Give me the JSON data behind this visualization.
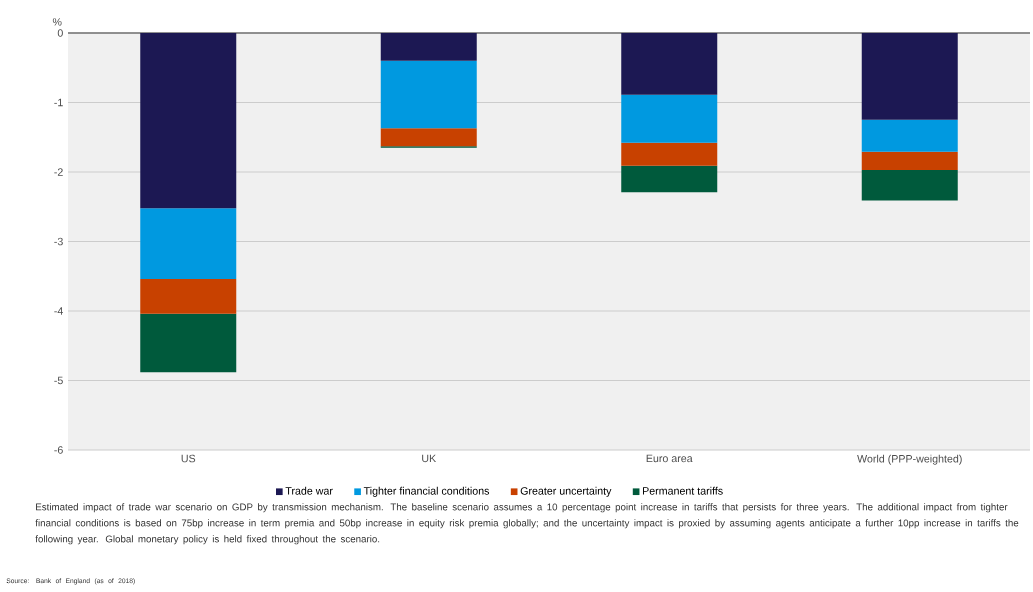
{
  "chart_data": {
    "type": "bar",
    "stacked": true,
    "ylabel": "%",
    "categories": [
      "US",
      "UK",
      "Euro area",
      "World (PPP-weighted)"
    ],
    "series": [
      {
        "name": "Trade war",
        "color": "#1c1853",
        "values": [
          -2.52,
          -0.4,
          -0.89,
          -1.25
        ]
      },
      {
        "name": "Tighter financial conditions",
        "color": "#0099e0",
        "values": [
          -1.02,
          -0.97,
          -0.69,
          -0.46
        ]
      },
      {
        "name": "Greater uncertainty",
        "color": "#c84100",
        "values": [
          -0.5,
          -0.26,
          -0.33,
          -0.26
        ]
      },
      {
        "name": "Permanent tariffs",
        "color": "#005a3c",
        "values": [
          -0.84,
          -0.02,
          -0.38,
          -0.44
        ]
      }
    ],
    "ylim": [
      -6,
      0
    ],
    "yticks": [
      0,
      -1,
      -2,
      -3,
      -4,
      -5,
      -6
    ],
    "grid": "y",
    "legend": "bottom",
    "annotations": [
      "Estimated impact of trade war scenario on GDP by transmission mechanism. The baseline scenario assumes a 10 percentage point increase in tariffs that persists for three years. The additional impact from tighter financial conditions is based on 75bp increase in term premia and 50bp increase in equity risk premia globally; and the uncertainty impact is proxied by assuming agents anticipate a further 10pp increase in tariffs the following year. Global monetary policy is held fixed throughout the scenario.",
      "Source: Bank of England (as of 2018)"
    ]
  }
}
